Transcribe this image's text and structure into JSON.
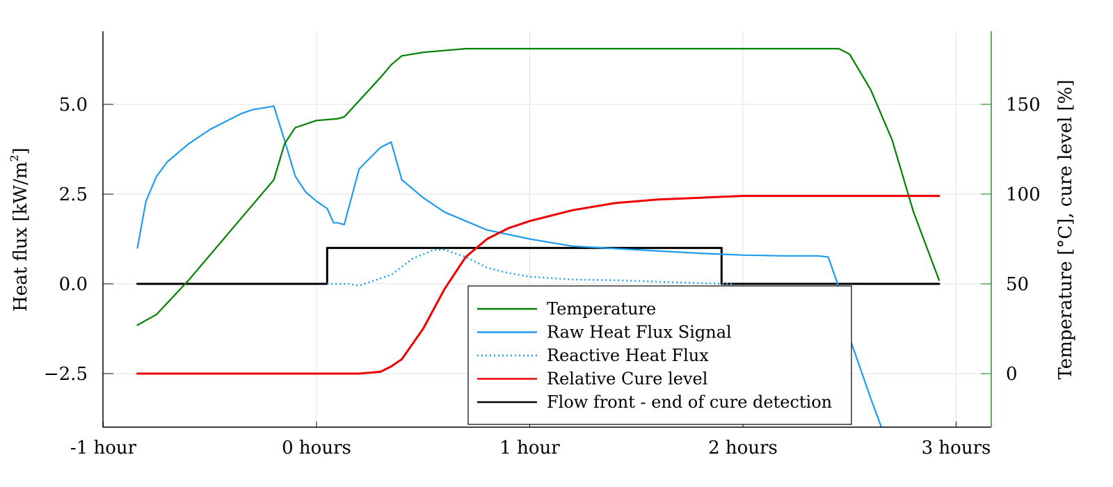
{
  "chart_data": {
    "type": "line",
    "title": "",
    "xlabel": "",
    "ylabel": "Heat flux [kW/m²]",
    "ylabel_right": "Temperature [°C], cure level [%]",
    "x_unit": "hours",
    "xlim": [
      -1.0,
      3.17
    ],
    "ylim": [
      -4.0,
      7.0
    ],
    "ylim_right": [
      -30,
      183
    ],
    "x_ticks": [
      {
        "value": -1,
        "label": "-1 hour"
      },
      {
        "value": 0,
        "label": "0 hours"
      },
      {
        "value": 1,
        "label": "1 hour"
      },
      {
        "value": 2,
        "label": "2 hours"
      },
      {
        "value": 3,
        "label": "3 hours"
      }
    ],
    "y_ticks": [
      {
        "value": 5.0,
        "label": "5.0"
      },
      {
        "value": 2.5,
        "label": "2.5"
      },
      {
        "value": 0.0,
        "label": "0.0"
      },
      {
        "value": -2.5,
        "label": "−2.5"
      }
    ],
    "y_ticks_right": [
      {
        "value": 150,
        "label": "150"
      },
      {
        "value": 100,
        "label": "100"
      },
      {
        "value": 50,
        "label": "50"
      },
      {
        "value": 0,
        "label": "0"
      }
    ],
    "grid": true,
    "legend_position": "lower center",
    "series": [
      {
        "name": "Temperature",
        "axis": "right",
        "color": "#008000",
        "style": "solid",
        "x": [
          -0.84,
          -0.75,
          -0.6,
          -0.4,
          -0.2,
          -0.15,
          -0.1,
          0.0,
          0.1,
          0.13,
          0.2,
          0.3,
          0.35,
          0.4,
          0.5,
          0.7,
          1.0,
          1.5,
          2.0,
          2.2,
          2.45,
          2.5,
          2.6,
          2.7,
          2.8,
          2.92
        ],
        "y": [
          27,
          33,
          52,
          80,
          108,
          128,
          137,
          141,
          142,
          143,
          152,
          165,
          172,
          177,
          179,
          181,
          181,
          181,
          181,
          181,
          181,
          178,
          158,
          130,
          90,
          52
        ]
      },
      {
        "name": "Raw Heat Flux Signal",
        "axis": "left",
        "color": "#1E9BEF",
        "style": "solid",
        "x": [
          -0.84,
          -0.8,
          -0.75,
          -0.7,
          -0.6,
          -0.5,
          -0.4,
          -0.35,
          -0.3,
          -0.2,
          -0.15,
          -0.1,
          -0.05,
          0.0,
          0.05,
          0.08,
          0.1,
          0.13,
          0.2,
          0.3,
          0.35,
          0.4,
          0.5,
          0.6,
          0.8,
          1.0,
          1.2,
          1.5,
          1.8,
          2.0,
          2.2,
          2.35,
          2.4,
          2.45,
          2.5,
          2.6,
          2.65
        ],
        "y": [
          1.0,
          2.3,
          3.0,
          3.4,
          3.9,
          4.3,
          4.6,
          4.75,
          4.85,
          4.95,
          4.0,
          3.0,
          2.55,
          2.3,
          2.1,
          1.7,
          1.7,
          1.65,
          3.2,
          3.8,
          3.95,
          2.9,
          2.4,
          2.0,
          1.5,
          1.25,
          1.05,
          0.95,
          0.85,
          0.8,
          0.78,
          0.78,
          0.75,
          -0.1,
          -1.5,
          -3.2,
          -4.0
        ]
      },
      {
        "name": "Reactive Heat Flux",
        "axis": "left",
        "color": "#1E9BEF",
        "style": "dotted",
        "x": [
          0.05,
          0.15,
          0.2,
          0.25,
          0.35,
          0.45,
          0.55,
          0.6,
          0.7,
          0.8,
          0.9,
          1.0,
          1.2,
          1.4,
          1.6,
          1.8,
          1.95
        ],
        "y": [
          0.0,
          0.0,
          -0.05,
          0.05,
          0.25,
          0.7,
          0.95,
          0.95,
          0.75,
          0.45,
          0.3,
          0.2,
          0.12,
          0.1,
          0.06,
          0.02,
          0.0
        ]
      },
      {
        "name": "Relative Cure level",
        "axis": "right",
        "color": "#EE0000",
        "style": "solid",
        "x": [
          -0.84,
          0.0,
          0.2,
          0.3,
          0.35,
          0.4,
          0.5,
          0.6,
          0.7,
          0.8,
          0.9,
          1.0,
          1.2,
          1.4,
          1.6,
          1.8,
          2.0,
          2.2,
          2.5,
          2.92
        ],
        "y": [
          0,
          0,
          0,
          1,
          4,
          8,
          25,
          47,
          65,
          75,
          81,
          85,
          91,
          95,
          97,
          98,
          99,
          99,
          99,
          99
        ]
      },
      {
        "name": "Flow front - end of cure detection",
        "axis": "left",
        "color": "#000000",
        "style": "solid",
        "x": [
          -0.84,
          0.05,
          0.05,
          1.9,
          1.9,
          2.92
        ],
        "y": [
          0,
          0,
          1,
          1,
          0,
          0
        ]
      }
    ]
  },
  "legend": {
    "items": [
      {
        "label": "Temperature",
        "color": "#008000",
        "style": "solid"
      },
      {
        "label": "Raw Heat Flux Signal",
        "color": "#1E9BEF",
        "style": "solid"
      },
      {
        "label": "Reactive Heat Flux",
        "color": "#1E9BEF",
        "style": "dotted"
      },
      {
        "label": "Relative Cure level",
        "color": "#EE0000",
        "style": "solid"
      },
      {
        "label": "Flow front - end of cure detection",
        "color": "#000000",
        "style": "solid"
      }
    ]
  },
  "axes": {
    "left_title_main": "Heat flux [kW/m",
    "left_title_sup": "2",
    "left_title_end": "]",
    "right_title": "Temperature [°C], cure level [%]",
    "right_axis_color": "#2E8B2E"
  }
}
